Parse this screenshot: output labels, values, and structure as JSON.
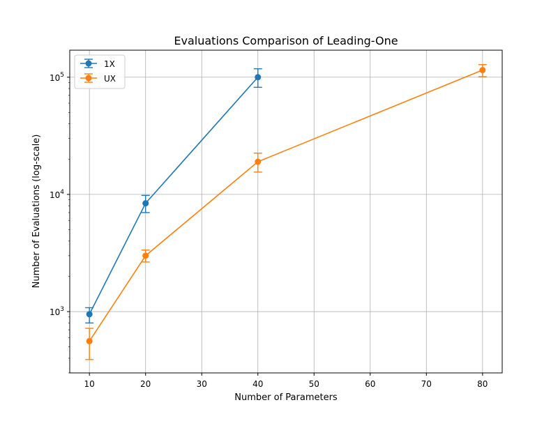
{
  "chart_data": {
    "type": "line",
    "title": "Evaluations Comparison of Leading-One",
    "xlabel": "Number of Parameters",
    "ylabel": "Number of Evaluations (log-scale)",
    "xlim": [
      6.5,
      83.5
    ],
    "ylim": [
      300,
      170000
    ],
    "y_scale": "log",
    "grid": true,
    "legend_position": "top-left",
    "x_ticks": [
      10,
      20,
      30,
      40,
      50,
      60,
      70,
      80
    ],
    "x_tick_labels": [
      "10",
      "20",
      "30",
      "40",
      "50",
      "60",
      "70",
      "80"
    ],
    "y_ticks": [
      {
        "value": 1000,
        "base": "10",
        "exp": "3"
      },
      {
        "value": 10000,
        "base": "10",
        "exp": "4"
      },
      {
        "value": 100000,
        "base": "10",
        "exp": "5"
      }
    ],
    "series": [
      {
        "name": "1X",
        "color": "#1f77b4",
        "x": [
          10,
          20,
          40
        ],
        "y": [
          950,
          8400,
          100000
        ],
        "err_low": [
          800,
          7000,
          82000
        ],
        "err_high": [
          1080,
          9800,
          118000
        ]
      },
      {
        "name": "UX",
        "color": "#ff7f0e",
        "x": [
          10,
          20,
          40,
          80
        ],
        "y": [
          560,
          3000,
          19000,
          115000
        ],
        "err_low": [
          390,
          2650,
          15500,
          101000
        ],
        "err_high": [
          720,
          3350,
          22500,
          128000
        ]
      }
    ]
  }
}
